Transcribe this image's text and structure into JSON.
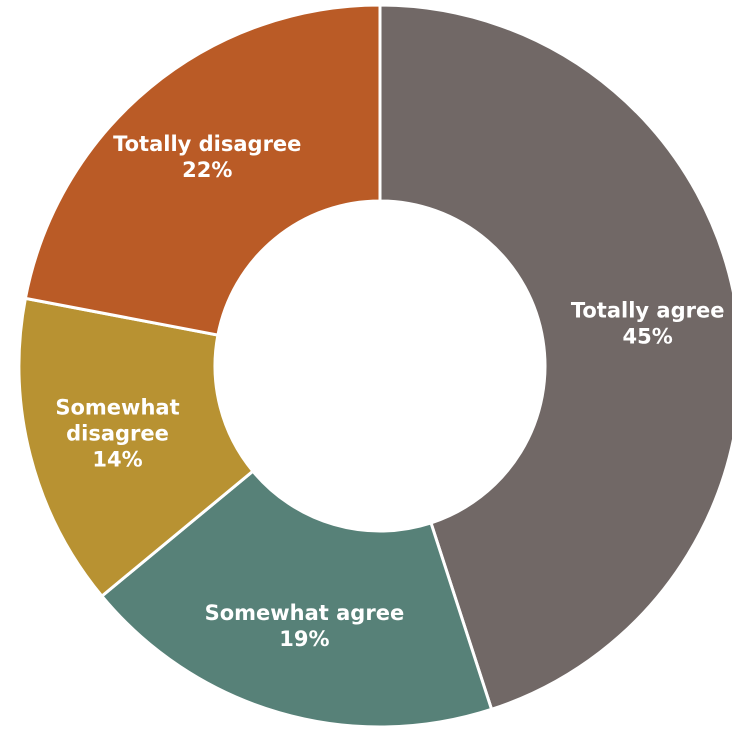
{
  "chart_data": {
    "type": "pie",
    "donut": true,
    "slices": [
      {
        "name": "Totally agree",
        "value": 45,
        "label": "45%",
        "color": "#716866",
        "label_lines": [
          "Totally agree",
          "45%"
        ]
      },
      {
        "name": "Somewhat agree",
        "value": 19,
        "label": "19%",
        "color": "#578178",
        "label_lines": [
          "Somewhat agree",
          "19%"
        ]
      },
      {
        "name": "Somewhat disagree",
        "value": 14,
        "label": "14%",
        "color": "#B89232",
        "label_lines": [
          "Somewhat",
          "disagree",
          "14%"
        ]
      },
      {
        "name": "Totally disagree",
        "value": 22,
        "label": "22%",
        "color": "#BA5B26",
        "label_lines": [
          "Totally disagree",
          "22%"
        ]
      }
    ],
    "start": "12 o'clock",
    "direction": "clockwise",
    "legend": "none",
    "title": ""
  }
}
